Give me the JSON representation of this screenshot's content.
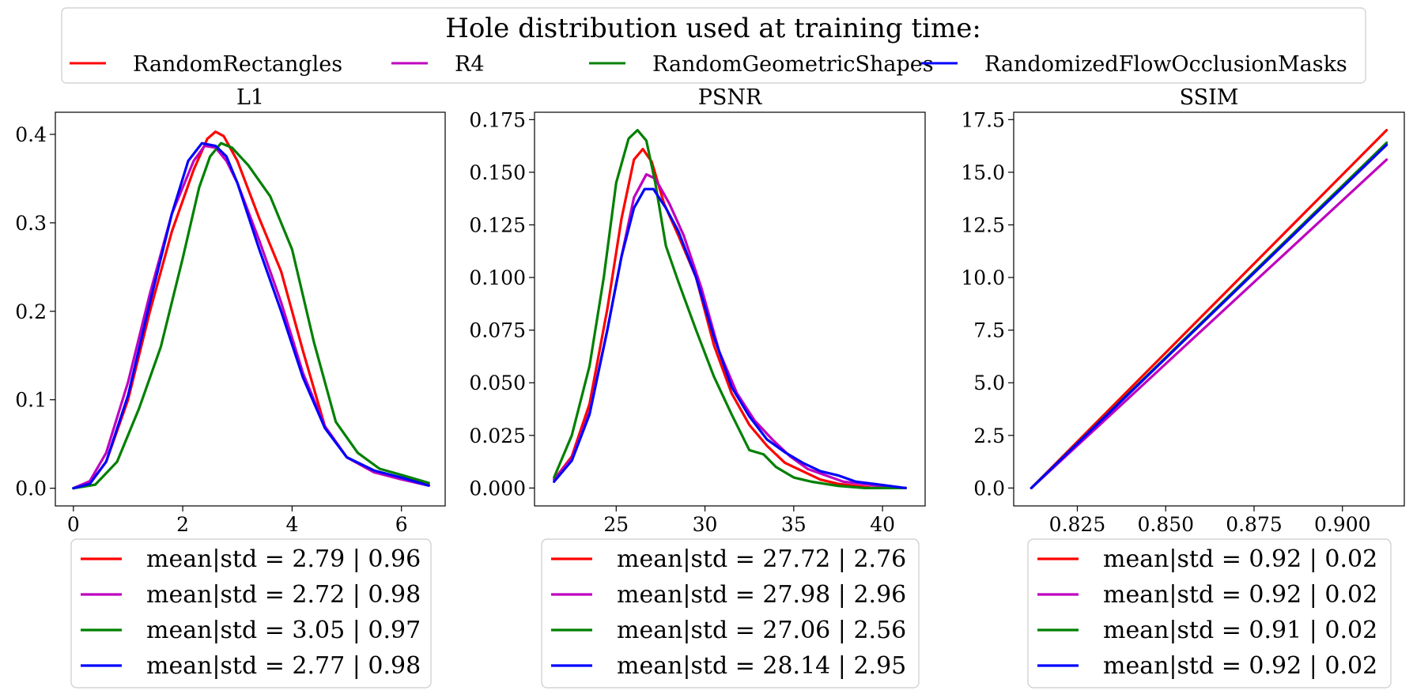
{
  "legend_title": "Hole distribution used at training time:",
  "colors": {
    "RandomRectangles": "#ff0000",
    "R4": "#bf00bf",
    "RandomGeometricShapes": "#008000",
    "RandomizedFlowOcclusionMasks": "#0000ff"
  },
  "chart_data": [
    {
      "type": "line",
      "title": "L1",
      "xlabel": "",
      "ylabel": "",
      "xlim": [
        -0.33,
        6.8
      ],
      "ylim": [
        -0.02,
        0.425
      ],
      "xticks": [
        0,
        2,
        4,
        6
      ],
      "yticks": [
        0.0,
        0.1,
        0.2,
        0.3,
        0.4
      ],
      "xtick_labels": [
        "0",
        "2",
        "4",
        "6"
      ],
      "ytick_labels": [
        "0.0",
        "0.1",
        "0.2",
        "0.3",
        "0.4"
      ],
      "series": [
        {
          "name": "RandomRectangles",
          "legend_label": "mean|std = 2.79 | 0.96",
          "x": [
            0,
            0.3,
            0.6,
            1.0,
            1.4,
            1.8,
            2.2,
            2.45,
            2.6,
            2.75,
            3.0,
            3.4,
            3.8,
            4.2,
            4.6,
            5.0,
            5.5,
            6.0,
            6.5
          ],
          "y": [
            0.0,
            0.005,
            0.03,
            0.1,
            0.2,
            0.29,
            0.36,
            0.395,
            0.403,
            0.398,
            0.37,
            0.305,
            0.245,
            0.155,
            0.07,
            0.035,
            0.018,
            0.012,
            0.004
          ]
        },
        {
          "name": "R4",
          "legend_label": "mean|std = 2.72 | 0.98",
          "x": [
            0,
            0.3,
            0.6,
            1.0,
            1.4,
            1.8,
            2.2,
            2.4,
            2.6,
            2.8,
            3.0,
            3.4,
            3.8,
            4.2,
            4.6,
            5.0,
            5.5,
            6.0,
            6.5
          ],
          "y": [
            0.0,
            0.008,
            0.04,
            0.12,
            0.22,
            0.31,
            0.37,
            0.387,
            0.385,
            0.37,
            0.345,
            0.28,
            0.21,
            0.13,
            0.07,
            0.035,
            0.018,
            0.01,
            0.003
          ]
        },
        {
          "name": "RandomGeometricShapes",
          "legend_label": "mean|std = 3.05 | 0.97",
          "x": [
            0,
            0.4,
            0.8,
            1.2,
            1.6,
            2.0,
            2.3,
            2.5,
            2.7,
            2.9,
            3.2,
            3.6,
            4.0,
            4.4,
            4.8,
            5.2,
            5.6,
            6.0,
            6.5
          ],
          "y": [
            0.0,
            0.004,
            0.03,
            0.09,
            0.16,
            0.26,
            0.34,
            0.375,
            0.39,
            0.385,
            0.365,
            0.33,
            0.27,
            0.165,
            0.075,
            0.04,
            0.022,
            0.015,
            0.006
          ]
        },
        {
          "name": "RandomizedFlowOcclusionMasks",
          "legend_label": "mean|std = 2.77 | 0.98",
          "x": [
            0,
            0.3,
            0.6,
            1.0,
            1.4,
            1.8,
            2.1,
            2.35,
            2.6,
            2.8,
            3.0,
            3.4,
            3.8,
            4.2,
            4.6,
            5.0,
            5.5,
            6.0,
            6.5
          ],
          "y": [
            0.0,
            0.005,
            0.03,
            0.105,
            0.21,
            0.31,
            0.37,
            0.39,
            0.387,
            0.375,
            0.345,
            0.27,
            0.2,
            0.125,
            0.068,
            0.035,
            0.02,
            0.012,
            0.003
          ]
        }
      ]
    },
    {
      "type": "line",
      "title": "PSNR",
      "xlabel": "",
      "ylabel": "",
      "xlim": [
        20.4,
        42.4
      ],
      "ylim": [
        -0.0085,
        0.1785
      ],
      "xticks": [
        25,
        30,
        35,
        40
      ],
      "yticks": [
        0.0,
        0.025,
        0.05,
        0.075,
        0.1,
        0.125,
        0.15,
        0.175
      ],
      "xtick_labels": [
        "25",
        "30",
        "35",
        "40"
      ],
      "ytick_labels": [
        "0.000",
        "0.025",
        "0.050",
        "0.075",
        "0.100",
        "0.125",
        "0.150",
        "0.175"
      ],
      "series": [
        {
          "name": "RandomRectangles",
          "legend_label": "mean|std = 27.72 | 2.76",
          "x": [
            21.5,
            22.5,
            23.5,
            24.5,
            25.3,
            26.0,
            26.5,
            27.0,
            27.7,
            28.5,
            29.5,
            30.5,
            31.5,
            32.5,
            33.5,
            34.5,
            35.5,
            36.5,
            37.5,
            38.5,
            39.5,
            41.3
          ],
          "y": [
            0.004,
            0.015,
            0.04,
            0.085,
            0.128,
            0.156,
            0.161,
            0.155,
            0.135,
            0.12,
            0.1,
            0.068,
            0.045,
            0.03,
            0.02,
            0.012,
            0.008,
            0.004,
            0.002,
            0.001,
            0.0,
            0.0
          ]
        },
        {
          "name": "R4",
          "legend_label": "mean|std = 27.98 | 2.96",
          "x": [
            21.5,
            22.5,
            23.5,
            24.5,
            25.3,
            26.0,
            26.7,
            27.2,
            28.0,
            28.8,
            29.8,
            30.8,
            31.8,
            32.8,
            33.8,
            34.8,
            35.8,
            36.8,
            37.8,
            38.8,
            39.8,
            41.3
          ],
          "y": [
            0.004,
            0.014,
            0.036,
            0.075,
            0.11,
            0.138,
            0.149,
            0.147,
            0.135,
            0.12,
            0.095,
            0.065,
            0.045,
            0.032,
            0.023,
            0.015,
            0.009,
            0.006,
            0.003,
            0.002,
            0.001,
            0.0
          ]
        },
        {
          "name": "RandomGeometricShapes",
          "legend_label": "mean|std = 27.06 | 2.56",
          "x": [
            21.5,
            22.5,
            23.5,
            24.3,
            25.0,
            25.7,
            26.2,
            26.7,
            27.2,
            27.8,
            28.5,
            29.5,
            30.5,
            31.5,
            32.5,
            33.3,
            34.0,
            35.0,
            36.0,
            37.5,
            39.0,
            41.3
          ],
          "y": [
            0.005,
            0.025,
            0.058,
            0.1,
            0.145,
            0.166,
            0.17,
            0.165,
            0.145,
            0.115,
            0.098,
            0.075,
            0.053,
            0.035,
            0.018,
            0.016,
            0.01,
            0.005,
            0.003,
            0.001,
            0.0,
            0.0
          ]
        },
        {
          "name": "RandomizedFlowOcclusionMasks",
          "legend_label": "mean|std = 28.14 | 2.95",
          "x": [
            21.5,
            22.5,
            23.5,
            24.5,
            25.3,
            26.0,
            26.6,
            27.1,
            27.8,
            28.5,
            29.5,
            30.5,
            31.5,
            32.5,
            33.5,
            34.5,
            35.5,
            36.5,
            37.5,
            38.5,
            39.5,
            41.3
          ],
          "y": [
            0.003,
            0.013,
            0.035,
            0.075,
            0.11,
            0.133,
            0.142,
            0.142,
            0.133,
            0.122,
            0.1,
            0.072,
            0.048,
            0.034,
            0.023,
            0.017,
            0.012,
            0.008,
            0.006,
            0.003,
            0.002,
            0.0
          ]
        }
      ]
    },
    {
      "type": "line",
      "title": "SSIM",
      "xlabel": "",
      "ylabel": "",
      "xlim": [
        0.807,
        0.9175
      ],
      "ylim": [
        -0.85,
        17.85
      ],
      "xticks": [
        0.825,
        0.85,
        0.875,
        0.9
      ],
      "yticks": [
        0.0,
        2.5,
        5.0,
        7.5,
        10.0,
        12.5,
        15.0,
        17.5
      ],
      "xtick_labels": [
        "0.825",
        "0.850",
        "0.875",
        "0.900"
      ],
      "ytick_labels": [
        "0.0",
        "2.5",
        "5.0",
        "7.5",
        "10.0",
        "12.5",
        "15.0",
        "17.5"
      ],
      "series": [
        {
          "name": "RandomRectangles",
          "legend_label": "mean|std = 0.92 | 0.02",
          "x": [
            0.812,
            0.9125
          ],
          "y": [
            0.0,
            17.0
          ]
        },
        {
          "name": "R4",
          "legend_label": "mean|std = 0.92 | 0.02",
          "x": [
            0.812,
            0.9125
          ],
          "y": [
            0.0,
            15.6
          ]
        },
        {
          "name": "RandomGeometricShapes",
          "legend_label": "mean|std = 0.91 | 0.02",
          "x": [
            0.812,
            0.9125
          ],
          "y": [
            0.0,
            16.4
          ]
        },
        {
          "name": "RandomizedFlowOcclusionMasks",
          "legend_label": "mean|std = 0.92 | 0.02",
          "x": [
            0.812,
            0.9125
          ],
          "y": [
            0.0,
            16.3
          ]
        }
      ]
    }
  ]
}
